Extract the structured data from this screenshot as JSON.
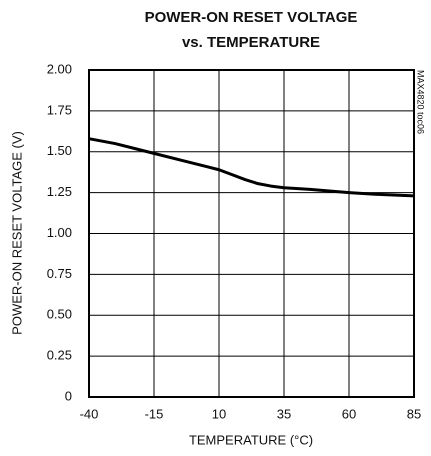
{
  "chart_data": {
    "type": "line",
    "title": [
      "POWER-ON RESET VOLTAGE",
      "vs. TEMPERATURE"
    ],
    "x_label": "TEMPERATURE (°C)",
    "y_label": "POWER-ON RESET VOLTAGE (V)",
    "annotation": "MAX4820 toc06",
    "x": [
      -40,
      -30,
      -20,
      -15,
      -5,
      5,
      10,
      15,
      20,
      25,
      30,
      35,
      45,
      60,
      70,
      85
    ],
    "series": [
      {
        "name": "VOLTAGE",
        "color": "#000000",
        "values": [
          1.58,
          1.55,
          1.51,
          1.49,
          1.45,
          1.41,
          1.39,
          1.36,
          1.33,
          1.305,
          1.29,
          1.28,
          1.27,
          1.25,
          1.24,
          1.23
        ]
      }
    ],
    "xlim": [
      -40,
      85
    ],
    "xticks": [
      -40,
      -15,
      10,
      35,
      60,
      85
    ],
    "ylim": [
      0,
      2
    ],
    "yticks": [
      0,
      0.25,
      {
        "value": 0.5,
        "label": "0.50"
      },
      0.75,
      {
        "value": 1,
        "label": "1.00"
      },
      1.25,
      {
        "value": 1.5,
        "label": "1.50"
      },
      1.75,
      {
        "value": 2,
        "label": "2.00"
      }
    ],
    "grid": true
  }
}
